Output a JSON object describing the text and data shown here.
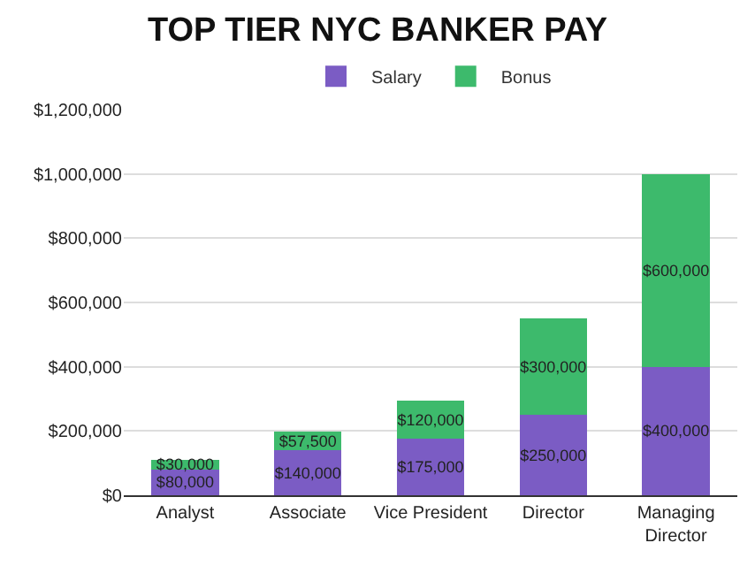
{
  "chart_data": {
    "type": "bar",
    "title": "TOP TIER NYC BANKER PAY",
    "stacked": true,
    "categories": [
      "Analyst",
      "Associate",
      "Vice President",
      "Director",
      "Managing Director"
    ],
    "series": [
      {
        "name": "Salary",
        "color": "#7b5cc4",
        "values": [
          80000,
          140000,
          175000,
          250000,
          400000
        ],
        "value_labels": [
          "$80,000",
          "$140,000",
          "$175,000",
          "$250,000",
          "$400,000"
        ]
      },
      {
        "name": "Bonus",
        "color": "#3dba6c",
        "values": [
          30000,
          57500,
          120000,
          300000,
          600000
        ],
        "value_labels": [
          "$30,000",
          "$57,500",
          "$120,000",
          "$300,000",
          "$600,000"
        ]
      }
    ],
    "ylim": [
      0,
      1200000
    ],
    "yticks": [
      {
        "value": 0,
        "label": "$0"
      },
      {
        "value": 200000,
        "label": "$200,000"
      },
      {
        "value": 400000,
        "label": "$400,000"
      },
      {
        "value": 600000,
        "label": "$600,000"
      },
      {
        "value": 800000,
        "label": "$800,000"
      },
      {
        "value": 1000000,
        "label": "$1,000,000"
      },
      {
        "value": 1200000,
        "label": "$1,200,000"
      }
    ],
    "grid": "y",
    "legend": "top"
  }
}
